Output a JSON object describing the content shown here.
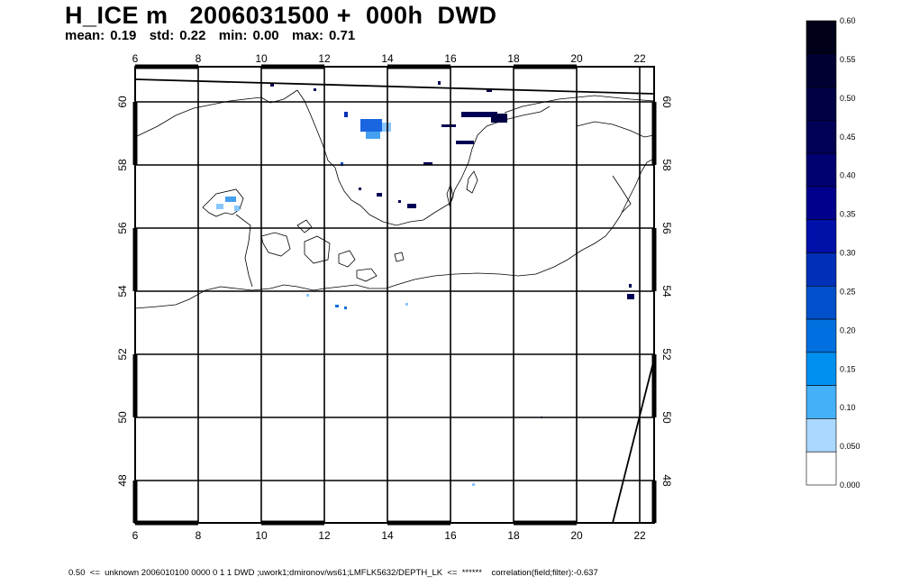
{
  "header": {
    "title": "H_ICE m   2006031500 +  000h  DWD",
    "mean_label": "mean:",
    "mean_value": "0.19",
    "std_label": "std:",
    "std_value": "0.22",
    "min_label": "min:",
    "min_value": "0.00",
    "max_label": "max:",
    "max_value": "0.71"
  },
  "map": {
    "lon_ticks": [
      "6",
      "8",
      "10",
      "12",
      "14",
      "16",
      "18",
      "20",
      "22"
    ],
    "lat_ticks": [
      "60",
      "58",
      "56",
      "54",
      "52",
      "50",
      "48"
    ]
  },
  "legend": {
    "labels": [
      "0.60",
      "0.55",
      "0.50",
      "0.45",
      "0.40",
      "0.35",
      "0.30",
      "0.25",
      "0.20",
      "0.15",
      "0.10",
      "0.050",
      "0.000"
    ],
    "colors": [
      "#00001a",
      "#000033",
      "#000044",
      "#000055",
      "#000070",
      "#00008c",
      "#0010a8",
      "#0030b8",
      "#0050cc",
      "#0070e0",
      "#0090f0",
      "#44b0f8",
      "#aad8ff",
      "#ffffff"
    ]
  },
  "footer": {
    "text": "0.50  <=  unknown 2006010100 0000 0 1 1 DWD ;uwork1;dmironov/ws61;LMFLK5632/DEPTH_LK  <=  ******    correlation(field;filter):-0.637"
  }
}
